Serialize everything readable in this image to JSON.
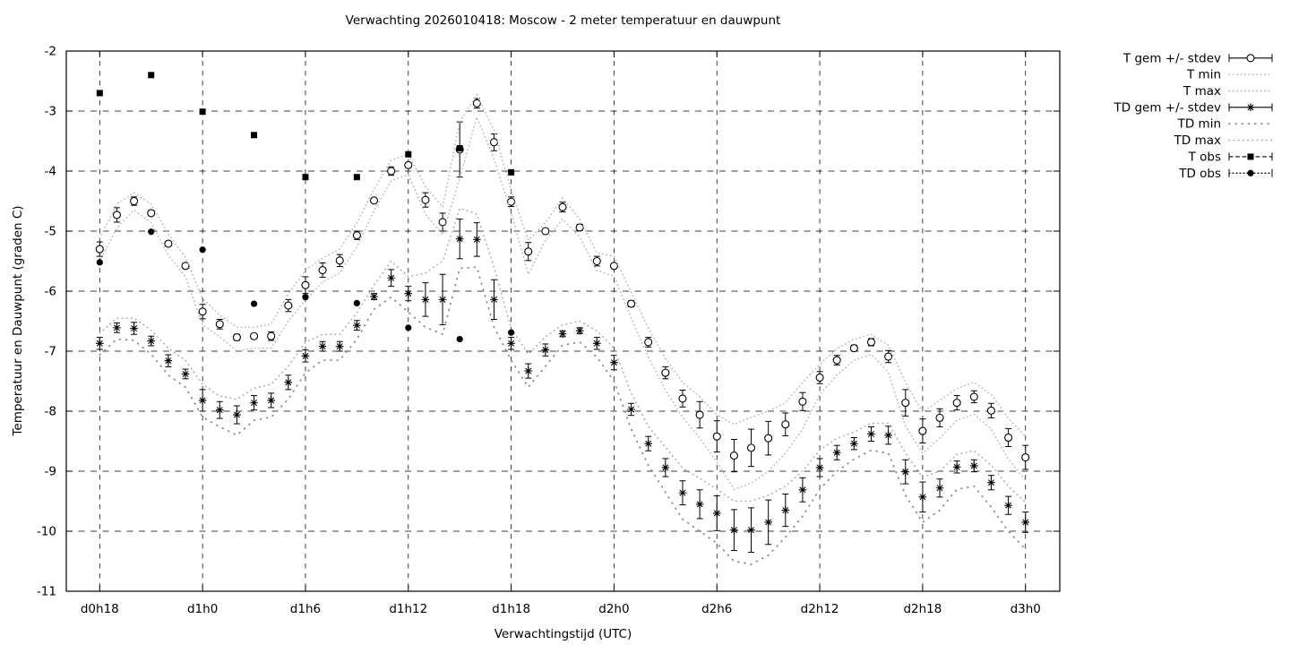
{
  "page": {
    "background": "#ffffff",
    "text_color": "#000000"
  },
  "chart_data": {
    "type": "scatter",
    "title": "Verwachting 2026010418: Moscow - 2 meter temperatuur en dauwpunt",
    "xlabel": "Verwachtingstijd (UTC)",
    "ylabel": "Temperatuur en Dauwpunt (graden C)",
    "grid": true,
    "legend_position": "outside-right",
    "ylim": [
      -11,
      -2
    ],
    "y_ticks": [
      -2,
      -3,
      -4,
      -5,
      -6,
      -7,
      -8,
      -9,
      -10,
      -11
    ],
    "y_tick_labels": [
      "-2",
      "-3",
      "-4",
      "-5",
      "-6",
      "-7",
      "-8",
      "-9",
      "-10",
      "-11"
    ],
    "xlim_hours": [
      16.05,
      74.0
    ],
    "x_tick_hours": [
      18,
      24,
      30,
      36,
      42,
      48,
      54,
      60,
      66,
      72
    ],
    "x_tick_labels": [
      "d0h18",
      "d1h0",
      "d1h6",
      "d1h12",
      "d1h18",
      "d2h0",
      "d2h6",
      "d2h12",
      "d2h18",
      "d3h0"
    ],
    "hours": [
      18,
      19,
      20,
      21,
      22,
      23,
      24,
      25,
      26,
      27,
      28,
      29,
      30,
      31,
      32,
      33,
      34,
      35,
      36,
      37,
      38,
      39,
      40,
      41,
      42,
      43,
      44,
      45,
      46,
      47,
      48,
      49,
      50,
      51,
      52,
      53,
      54,
      55,
      56,
      57,
      58,
      59,
      60,
      61,
      62,
      63,
      64,
      65,
      66,
      67,
      68,
      69,
      70,
      71,
      72
    ],
    "series": [
      {
        "id": "t_gem",
        "label": "T gem +/- stdev",
        "style": "errorbars",
        "marker": "open-circle",
        "color": "#000000",
        "line": "solid",
        "values": [
          -5.3,
          -4.73,
          -4.5,
          -4.7,
          -5.21,
          -5.58,
          -6.34,
          -6.55,
          -6.77,
          -6.75,
          -6.75,
          -6.24,
          -5.9,
          -5.65,
          -5.49,
          -5.07,
          -4.49,
          -4.0,
          -3.9,
          -4.48,
          -4.85,
          -3.64,
          -2.87,
          -3.52,
          -4.51,
          -5.34,
          -5.0,
          -4.6,
          -4.94,
          -5.5,
          -5.58,
          -6.21,
          -6.85,
          -7.36,
          -7.79,
          -8.06,
          -8.42,
          -8.74,
          -8.61,
          -8.45,
          -8.22,
          -7.84,
          -7.44,
          -7.15,
          -6.95,
          -6.85,
          -7.09,
          -7.86,
          -8.33,
          -8.11,
          -7.86,
          -7.76,
          -7.99,
          -8.44,
          -8.77
        ],
        "stdev": [
          0.12,
          0.12,
          0.07,
          0.04,
          0.04,
          0.04,
          0.12,
          0.08,
          0.05,
          0.04,
          0.07,
          0.1,
          0.14,
          0.12,
          0.1,
          0.07,
          0.04,
          0.07,
          0.04,
          0.12,
          0.15,
          0.46,
          0.08,
          0.14,
          0.08,
          0.15,
          0.03,
          0.08,
          0.05,
          0.08,
          0.03,
          0.05,
          0.08,
          0.1,
          0.14,
          0.22,
          0.26,
          0.27,
          0.31,
          0.28,
          0.19,
          0.15,
          0.1,
          0.08,
          0.05,
          0.06,
          0.1,
          0.22,
          0.2,
          0.15,
          0.12,
          0.1,
          0.12,
          0.15,
          0.2
        ]
      },
      {
        "id": "t_min",
        "label": "T min",
        "style": "line",
        "marker": "none",
        "color": "#b4b4b4",
        "line": "dot-fine",
        "values": [
          -5.5,
          -4.95,
          -4.65,
          -4.86,
          -5.4,
          -5.76,
          -6.56,
          -6.76,
          -7.0,
          -6.95,
          -6.95,
          -6.5,
          -6.15,
          -5.85,
          -5.7,
          -5.26,
          -4.66,
          -4.16,
          -4.06,
          -4.72,
          -5.06,
          -4.12,
          -3.1,
          -3.8,
          -4.7,
          -5.72,
          -5.15,
          -4.8,
          -5.1,
          -5.66,
          -5.75,
          -6.45,
          -7.1,
          -7.65,
          -8.1,
          -8.45,
          -8.85,
          -9.3,
          -9.2,
          -9.0,
          -8.7,
          -8.3,
          -7.72,
          -7.4,
          -7.15,
          -7.05,
          -7.35,
          -8.25,
          -8.7,
          -8.45,
          -8.15,
          -8.05,
          -8.3,
          -8.8,
          -9.15
        ]
      },
      {
        "id": "t_max",
        "label": "T max",
        "style": "line",
        "marker": "none",
        "color": "#b4b4b4",
        "line": "dot-fine",
        "values": [
          -5.12,
          -4.55,
          -4.36,
          -4.55,
          -5.05,
          -5.44,
          -6.12,
          -6.4,
          -6.6,
          -6.6,
          -6.55,
          -6.05,
          -5.65,
          -5.45,
          -5.3,
          -4.86,
          -4.3,
          -3.82,
          -3.72,
          -4.25,
          -4.6,
          -3.18,
          -2.73,
          -3.32,
          -4.32,
          -5.15,
          -4.86,
          -4.45,
          -4.8,
          -5.36,
          -5.42,
          -6.02,
          -6.62,
          -7.12,
          -7.52,
          -7.76,
          -8.06,
          -8.22,
          -8.1,
          -8.0,
          -7.86,
          -7.52,
          -7.22,
          -6.96,
          -6.8,
          -6.72,
          -6.9,
          -7.52,
          -8.02,
          -7.82,
          -7.62,
          -7.52,
          -7.72,
          -8.12,
          -8.42
        ]
      },
      {
        "id": "td_gem",
        "label": "TD gem +/- stdev",
        "style": "errorbars",
        "marker": "asterisk",
        "color": "#000000",
        "line": "solid",
        "values": [
          -6.87,
          -6.61,
          -6.62,
          -6.83,
          -7.16,
          -7.38,
          -7.82,
          -7.98,
          -8.06,
          -7.86,
          -7.82,
          -7.52,
          -7.08,
          -6.92,
          -6.92,
          -6.57,
          -6.09,
          -5.78,
          -6.04,
          -6.14,
          -6.14,
          -5.13,
          -5.14,
          -6.14,
          -6.87,
          -7.33,
          -6.98,
          -6.71,
          -6.66,
          -6.87,
          -7.19,
          -7.97,
          -8.54,
          -8.94,
          -9.36,
          -9.55,
          -9.7,
          -9.98,
          -9.98,
          -9.85,
          -9.65,
          -9.31,
          -8.94,
          -8.69,
          -8.54,
          -8.38,
          -8.4,
          -9.01,
          -9.43,
          -9.28,
          -8.93,
          -8.91,
          -9.19,
          -9.57,
          -9.85
        ],
        "stdev": [
          0.1,
          0.08,
          0.1,
          0.08,
          0.1,
          0.08,
          0.18,
          0.14,
          0.15,
          0.12,
          0.12,
          0.12,
          0.1,
          0.08,
          0.08,
          0.08,
          0.05,
          0.14,
          0.12,
          0.28,
          0.42,
          0.33,
          0.28,
          0.33,
          0.1,
          0.12,
          0.1,
          0.05,
          0.05,
          0.1,
          0.12,
          0.1,
          0.12,
          0.15,
          0.2,
          0.24,
          0.29,
          0.34,
          0.37,
          0.37,
          0.27,
          0.2,
          0.15,
          0.12,
          0.1,
          0.12,
          0.15,
          0.2,
          0.25,
          0.15,
          0.1,
          0.1,
          0.12,
          0.15,
          0.17
        ]
      },
      {
        "id": "td_min",
        "label": "TD min",
        "style": "line",
        "marker": "none",
        "color": "#8e8e8e",
        "line": "dot-sparse",
        "values": [
          -7.06,
          -6.8,
          -6.82,
          -7.05,
          -7.4,
          -7.6,
          -8.1,
          -8.26,
          -8.4,
          -8.15,
          -8.1,
          -7.8,
          -7.36,
          -7.15,
          -7.15,
          -6.8,
          -6.3,
          -6.1,
          -6.35,
          -6.6,
          -6.72,
          -5.62,
          -5.6,
          -6.6,
          -7.15,
          -7.6,
          -7.25,
          -6.9,
          -6.85,
          -7.1,
          -7.5,
          -8.3,
          -8.9,
          -9.35,
          -9.8,
          -10.0,
          -10.2,
          -10.5,
          -10.55,
          -10.4,
          -10.1,
          -9.75,
          -9.3,
          -9.0,
          -8.8,
          -8.65,
          -8.7,
          -9.4,
          -9.85,
          -9.65,
          -9.3,
          -9.25,
          -9.6,
          -10.0,
          -10.3
        ]
      },
      {
        "id": "td_max",
        "label": "TD max",
        "style": "line",
        "marker": "none",
        "color": "#a8a8a8",
        "line": "dot-med",
        "values": [
          -6.7,
          -6.45,
          -6.45,
          -6.65,
          -6.95,
          -7.15,
          -7.55,
          -7.75,
          -7.8,
          -7.62,
          -7.55,
          -7.25,
          -6.85,
          -6.72,
          -6.72,
          -6.36,
          -5.9,
          -5.5,
          -5.76,
          -5.7,
          -5.5,
          -4.62,
          -4.72,
          -5.6,
          -6.62,
          -7.05,
          -6.76,
          -6.56,
          -6.5,
          -6.66,
          -6.95,
          -7.7,
          -8.25,
          -8.6,
          -8.95,
          -9.12,
          -9.3,
          -9.5,
          -9.5,
          -9.4,
          -9.25,
          -9.0,
          -8.65,
          -8.45,
          -8.35,
          -8.2,
          -8.2,
          -8.7,
          -9.1,
          -9.0,
          -8.72,
          -8.66,
          -8.9,
          -9.25,
          -9.52
        ]
      },
      {
        "id": "t_obs",
        "label": "T obs",
        "style": "points",
        "marker": "filled-square",
        "color": "#000000",
        "line": "dash",
        "hours": [
          18,
          21,
          24,
          27,
          30,
          33,
          36,
          39,
          42
        ],
        "values": [
          -2.7,
          -2.4,
          -3.01,
          -3.4,
          -4.1,
          -4.1,
          -3.72,
          -3.62,
          -4.02
        ]
      },
      {
        "id": "td_obs",
        "label": "TD obs",
        "style": "points",
        "marker": "filled-circle",
        "color": "#000000",
        "line": "dot",
        "hours": [
          18,
          21,
          24,
          27,
          30,
          33,
          36,
          39,
          42
        ],
        "values": [
          -5.52,
          -5.01,
          -5.31,
          -6.21,
          -6.1,
          -6.2,
          -6.61,
          -6.8,
          -6.69
        ]
      }
    ]
  }
}
